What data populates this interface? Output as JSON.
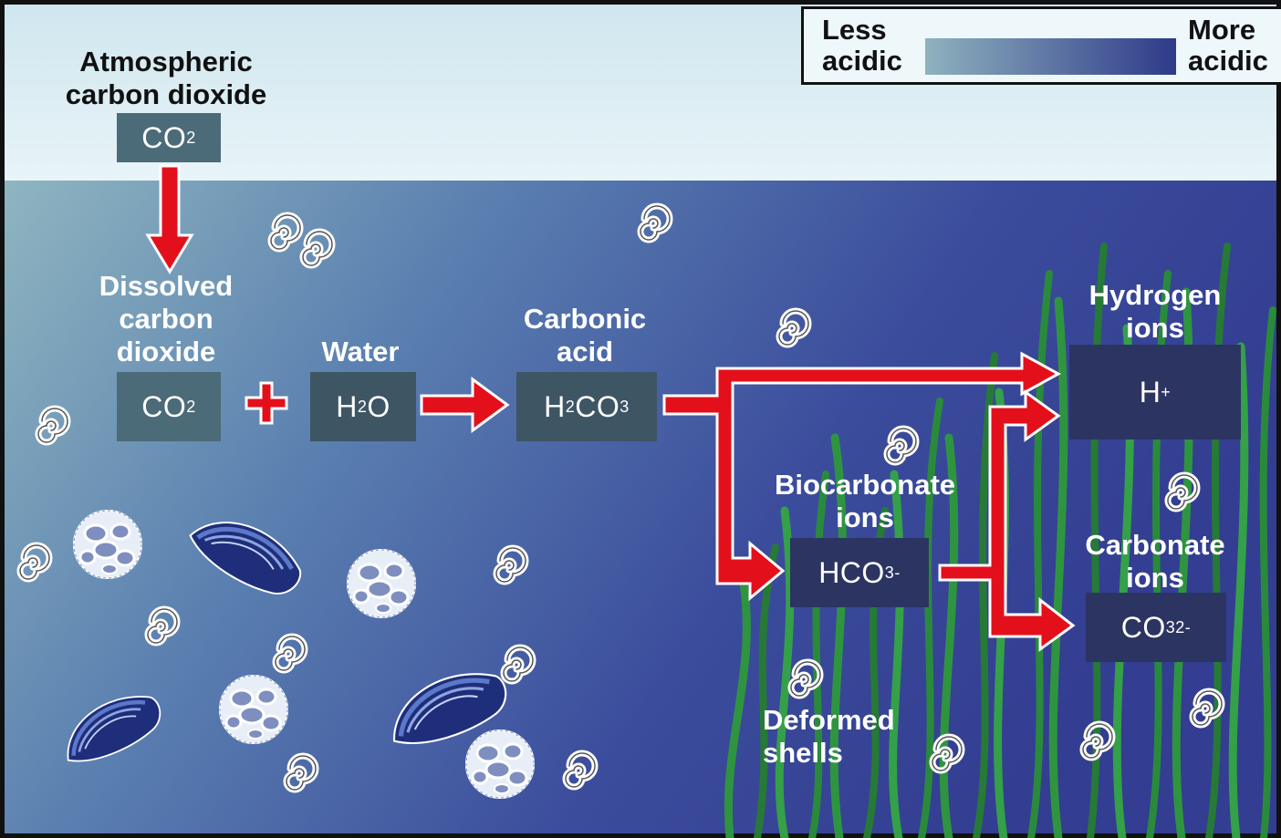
{
  "legend": {
    "less": [
      "Less",
      "acidic"
    ],
    "more": [
      "More",
      "acidic"
    ]
  },
  "labels": {
    "atmospheric": [
      "Atmospheric",
      "carbon dioxide"
    ],
    "dissolved": [
      "Dissolved",
      "carbon",
      "dioxide"
    ],
    "water": [
      "Water"
    ],
    "carbonic": [
      "Carbonic",
      "acid"
    ],
    "hydrogen": [
      "Hydrogen",
      "ions"
    ],
    "biocarbonate": [
      "Biocarbonate",
      "ions"
    ],
    "carbonate": [
      "Carbonate",
      "ions"
    ],
    "deformed": [
      "Deformed",
      "shells"
    ]
  },
  "formulas": {
    "co2_atm": {
      "base": "CO",
      "sub": "2"
    },
    "co2_dis": {
      "base": "CO",
      "sub": "2"
    },
    "h2o": {
      "base1": "H",
      "sub": "2",
      "base2": "O"
    },
    "h2co3": {
      "b1": "H",
      "s1": "2",
      "b2": "CO",
      "s2": "3"
    },
    "hplus": {
      "base": "H",
      "sup": "+"
    },
    "hco3": {
      "base": "HCO",
      "sub": "3",
      "sup": "-"
    },
    "co3": {
      "base": "CO",
      "sub": "3",
      "sup": "2-"
    }
  },
  "colors": {
    "sky": "#d9ecf2",
    "sea_left": "#8cb4bf",
    "sea_right": "#2e3688",
    "arrow": "#e3101c",
    "seaweed": "#2e8b3c"
  }
}
